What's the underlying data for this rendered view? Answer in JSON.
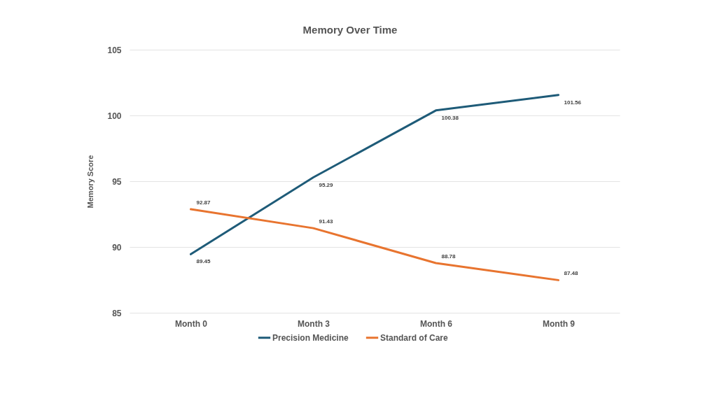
{
  "chart_data": {
    "type": "line",
    "title": "Memory Over Time",
    "ylabel": "Memory Score",
    "categories": [
      "Month 0",
      "Month 3",
      "Month 6",
      "Month 9"
    ],
    "series": [
      {
        "name": "Precision Medicine",
        "color": "#1e5b78",
        "values": [
          89.45,
          95.29,
          100.38,
          101.56
        ]
      },
      {
        "name": "Standard of Care",
        "color": "#e8742f",
        "values": [
          92.87,
          91.43,
          88.78,
          87.48
        ]
      }
    ],
    "ylim": [
      85,
      105
    ],
    "yticks": [
      85,
      90,
      95,
      100,
      105
    ],
    "grid": "y",
    "legend": "bottom",
    "marker": "none",
    "line_style": "solid",
    "data_labels": true
  }
}
